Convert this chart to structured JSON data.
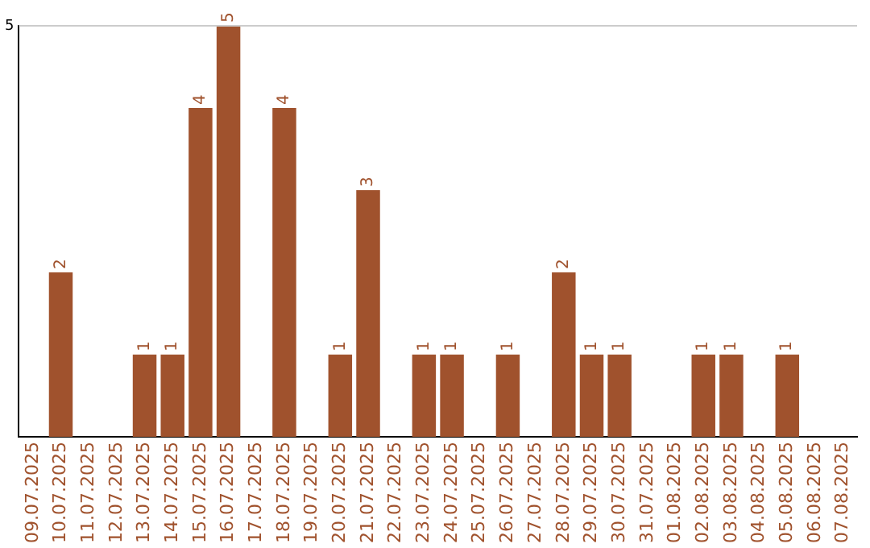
{
  "chart_data": {
    "type": "bar",
    "categories": [
      "09.07.2025",
      "10.07.2025",
      "11.07.2025",
      "12.07.2025",
      "13.07.2025",
      "14.07.2025",
      "15.07.2025",
      "16.07.2025",
      "17.07.2025",
      "18.07.2025",
      "19.07.2025",
      "20.07.2025",
      "21.07.2025",
      "22.07.2025",
      "23.07.2025",
      "24.07.2025",
      "25.07.2025",
      "26.07.2025",
      "27.07.2025",
      "28.07.2025",
      "29.07.2025",
      "30.07.2025",
      "31.07.2025",
      "01.08.2025",
      "02.08.2025",
      "03.08.2025",
      "04.08.2025",
      "05.08.2025",
      "06.08.2025",
      "07.08.2025"
    ],
    "values": [
      0,
      2,
      0,
      0,
      1,
      1,
      4,
      5,
      0,
      4,
      0,
      1,
      3,
      0,
      1,
      1,
      0,
      1,
      0,
      2,
      1,
      1,
      0,
      0,
      1,
      1,
      0,
      1,
      0,
      0
    ],
    "value_labels": [
      null,
      "2",
      null,
      null,
      "1",
      "1",
      "4",
      "5",
      null,
      "4",
      null,
      "1",
      "3",
      null,
      "1",
      "1",
      null,
      "1",
      null,
      "2",
      "1",
      "1",
      null,
      null,
      "1",
      "1",
      null,
      "1",
      null,
      null
    ],
    "color": "#a0522d",
    "ylim": [
      0,
      5
    ],
    "yticks": [
      5
    ],
    "ref_lines": [
      {
        "axis": "y",
        "value": 5,
        "color": "#cccccc"
      }
    ],
    "legend": false
  }
}
